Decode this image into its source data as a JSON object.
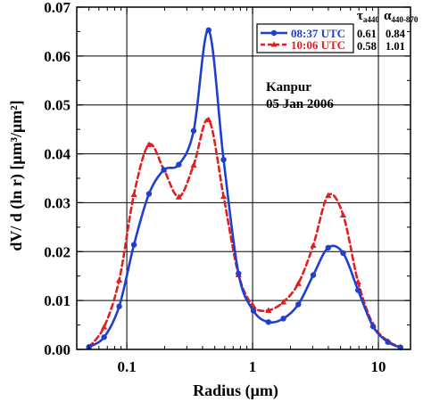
{
  "chart_data": {
    "type": "line",
    "xscale": "log",
    "xlabel": "Radius (μm)",
    "ylabel": "dV/ d (ln r)  [μm³/μm²]",
    "xlim": [
      0.04,
      18
    ],
    "ylim": [
      0,
      0.07
    ],
    "xticks": [
      0.1,
      1,
      10
    ],
    "xtick_labels": [
      "0.1",
      "1",
      "10"
    ],
    "yticks": [
      0,
      0.01,
      0.02,
      0.03,
      0.04,
      0.05,
      0.06,
      0.07
    ],
    "ytick_labels": [
      "0.00",
      "0.01",
      "0.02",
      "0.03",
      "0.04",
      "0.05",
      "0.06",
      "0.07"
    ],
    "grid": true,
    "legend_position": "top-right",
    "annotations": [
      "Kanpur",
      "05 Jan 2006"
    ],
    "param_headers": [
      "τ",
      "a440",
      "α",
      "440-870"
    ],
    "series": [
      {
        "name": "08:37 UTC",
        "color": "#1f3fcf",
        "style": "solid",
        "marker": "circle",
        "tau": "0.61",
        "alpha": "0.84",
        "x": [
          0.05,
          0.066,
          0.087,
          0.114,
          0.15,
          0.197,
          0.259,
          0.34,
          0.447,
          0.588,
          0.773,
          1.016,
          1.336,
          1.756,
          2.309,
          3.035,
          3.99,
          5.245,
          6.896,
          9.065,
          11.917,
          15.0
        ],
        "y": [
          0.0005,
          0.0025,
          0.0088,
          0.0214,
          0.0318,
          0.0367,
          0.0378,
          0.0447,
          0.0653,
          0.0388,
          0.0155,
          0.0079,
          0.0056,
          0.0063,
          0.0092,
          0.0152,
          0.0208,
          0.0197,
          0.0121,
          0.0047,
          0.0015,
          0.0004
        ]
      },
      {
        "name": "10:06 UTC",
        "color": "#e02020",
        "style": "dashed",
        "marker": "triangle",
        "tau": "0.58",
        "alpha": "1.01",
        "x": [
          0.05,
          0.066,
          0.087,
          0.114,
          0.15,
          0.197,
          0.259,
          0.34,
          0.447,
          0.588,
          0.773,
          1.016,
          1.336,
          1.756,
          2.309,
          3.035,
          3.99,
          5.245,
          6.896,
          9.065,
          11.917,
          15.0
        ],
        "y": [
          0.0005,
          0.0046,
          0.0142,
          0.0317,
          0.0419,
          0.0368,
          0.0312,
          0.0377,
          0.047,
          0.0313,
          0.0153,
          0.0088,
          0.008,
          0.0097,
          0.0135,
          0.0213,
          0.0315,
          0.0275,
          0.0138,
          0.0051,
          0.0017,
          0.0005
        ]
      }
    ]
  }
}
